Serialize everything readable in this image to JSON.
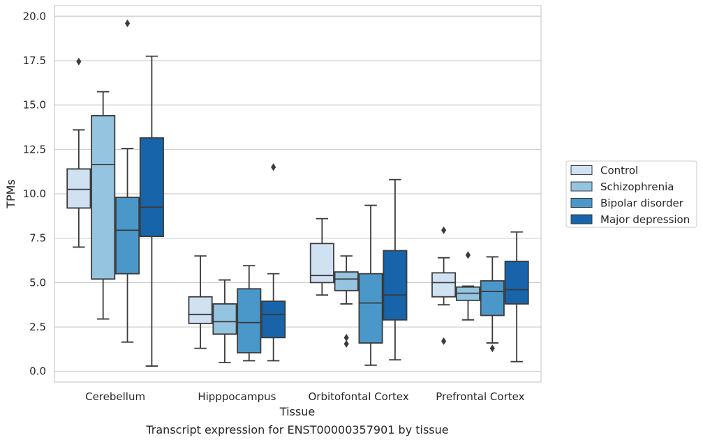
{
  "chart_data": {
    "type": "boxplot",
    "caption": "Transcript expression for ENST00000357901 by tissue",
    "xlabel": "Tissue",
    "ylabel": "TPMs",
    "ylim": [
      -0.6,
      20.6
    ],
    "yticks": [
      "0.0",
      "2.5",
      "5.0",
      "7.5",
      "10.0",
      "12.5",
      "15.0",
      "17.5",
      "20.0"
    ],
    "grid": "horizontal",
    "legend_position": "right",
    "categories": [
      "Cerebellum",
      "Hipppocampus",
      "Orbitofontal Cortex",
      "Prefrontal Cortex"
    ],
    "series": [
      {
        "name": "Control",
        "color": "#d0e1f2",
        "boxes": [
          {
            "whislo": 7.0,
            "q1": 9.2,
            "med": 10.25,
            "q3": 11.4,
            "whishi": 13.6,
            "fliers": [
              17.45
            ]
          },
          {
            "whislo": 1.3,
            "q1": 2.7,
            "med": 3.2,
            "q3": 4.2,
            "whishi": 6.5,
            "fliers": []
          },
          {
            "whislo": 4.3,
            "q1": 5.0,
            "med": 5.4,
            "q3": 7.2,
            "whishi": 8.6,
            "fliers": []
          },
          {
            "whislo": 3.75,
            "q1": 4.2,
            "med": 5.0,
            "q3": 5.55,
            "whishi": 6.4,
            "fliers": [
              1.7,
              7.95
            ]
          }
        ]
      },
      {
        "name": "Schizophrenia",
        "color": "#94c4df",
        "boxes": [
          {
            "whislo": 2.95,
            "q1": 5.2,
            "med": 11.65,
            "q3": 14.4,
            "whishi": 15.75,
            "fliers": []
          },
          {
            "whislo": 0.5,
            "q1": 2.1,
            "med": 2.8,
            "q3": 3.8,
            "whishi": 5.15,
            "fliers": []
          },
          {
            "whislo": 3.8,
            "q1": 4.55,
            "med": 5.2,
            "q3": 5.6,
            "whishi": 6.5,
            "fliers": [
              1.55,
              1.9
            ]
          },
          {
            "whislo": 2.9,
            "q1": 4.0,
            "med": 4.4,
            "q3": 4.75,
            "whishi": 4.8,
            "fliers": [
              6.55
            ]
          }
        ]
      },
      {
        "name": "Bipolar disorder",
        "color": "#4a98c9",
        "boxes": [
          {
            "whislo": 1.65,
            "q1": 5.5,
            "med": 7.95,
            "q3": 9.8,
            "whishi": 12.55,
            "fliers": [
              19.6
            ]
          },
          {
            "whislo": 0.6,
            "q1": 1.05,
            "med": 2.75,
            "q3": 4.65,
            "whishi": 5.95,
            "fliers": []
          },
          {
            "whislo": 0.35,
            "q1": 1.6,
            "med": 3.85,
            "q3": 5.5,
            "whishi": 9.35,
            "fliers": []
          },
          {
            "whislo": 1.6,
            "q1": 3.15,
            "med": 4.5,
            "q3": 5.1,
            "whishi": 6.45,
            "fliers": [
              1.3
            ]
          }
        ]
      },
      {
        "name": "Major depression",
        "color": "#1764ab",
        "boxes": [
          {
            "whislo": 0.3,
            "q1": 7.6,
            "med": 9.25,
            "q3": 13.15,
            "whishi": 17.75,
            "fliers": []
          },
          {
            "whislo": 0.6,
            "q1": 1.9,
            "med": 3.2,
            "q3": 3.95,
            "whishi": 5.5,
            "fliers": [
              11.5
            ]
          },
          {
            "whislo": 0.65,
            "q1": 2.9,
            "med": 4.3,
            "q3": 6.8,
            "whishi": 10.8,
            "fliers": []
          },
          {
            "whislo": 0.55,
            "q1": 3.8,
            "med": 4.6,
            "q3": 6.2,
            "whishi": 7.85,
            "fliers": []
          }
        ]
      }
    ]
  }
}
